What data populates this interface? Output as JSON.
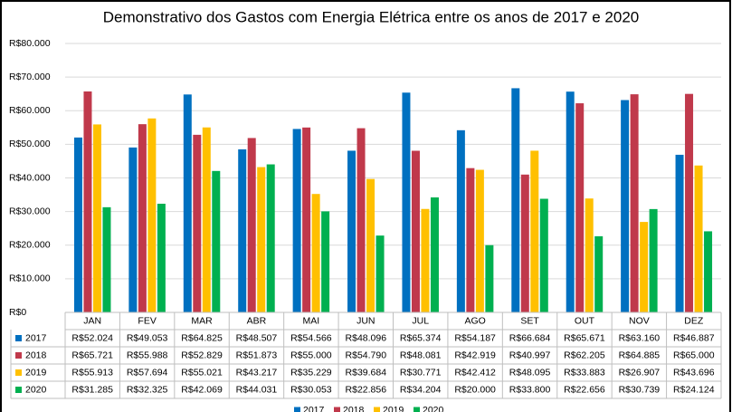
{
  "chart_data": {
    "type": "bar",
    "title": "Demonstrativo dos Gastos com Energia Elétrica entre os anos de 2017 e 2020",
    "categories": [
      "JAN",
      "FEV",
      "MAR",
      "ABR",
      "MAI",
      "JUN",
      "JUL",
      "AGO",
      "SET",
      "OUT",
      "NOV",
      "DEZ"
    ],
    "series": [
      {
        "name": "2017",
        "color": "#0070c0",
        "values": [
          52024,
          49053,
          64825,
          48507,
          54566,
          48096,
          65374,
          54187,
          66684,
          65671,
          63160,
          46887
        ],
        "value_labels": [
          "R$52.024",
          "R$49.053",
          "R$64.825",
          "R$48.507",
          "R$54.566",
          "R$48.096",
          "R$65.374",
          "R$54.187",
          "R$66.684",
          "R$65.671",
          "R$63.160",
          "R$46.887"
        ]
      },
      {
        "name": "2018",
        "color": "#c0394b",
        "values": [
          65721,
          55988,
          52829,
          51873,
          55000,
          54790,
          48081,
          42919,
          40997,
          62205,
          64885,
          65000
        ],
        "value_labels": [
          "R$65.721",
          "R$55.988",
          "R$52.829",
          "R$51.873",
          "R$55.000",
          "R$54.790",
          "R$48.081",
          "R$42.919",
          "R$40.997",
          "R$62.205",
          "R$64.885",
          "R$65.000"
        ]
      },
      {
        "name": "2019",
        "color": "#ffc000",
        "values": [
          55913,
          57694,
          55021,
          43217,
          35229,
          39684,
          30771,
          42412,
          48095,
          33883,
          26907,
          43696
        ],
        "value_labels": [
          "R$55.913",
          "R$57.694",
          "R$55.021",
          "R$43.217",
          "R$35.229",
          "R$39.684",
          "R$30.771",
          "R$42.412",
          "R$48.095",
          "R$33.883",
          "R$26.907",
          "R$43.696"
        ]
      },
      {
        "name": "2020",
        "color": "#00b050",
        "values": [
          31285,
          32325,
          42069,
          44031,
          30053,
          22856,
          34204,
          20000,
          33800,
          22656,
          30739,
          24124
        ],
        "value_labels": [
          "R$31.285",
          "R$32.325",
          "R$42.069",
          "R$44.031",
          "R$30.053",
          "R$22.856",
          "R$34.204",
          "R$20.000",
          "R$33.800",
          "R$22.656",
          "R$30.739",
          "R$24.124"
        ]
      }
    ],
    "ylim": [
      0,
      80000
    ],
    "yticks": [
      {
        "value": 0,
        "label": "R$0"
      },
      {
        "value": 10000,
        "label": "R$10.000"
      },
      {
        "value": 20000,
        "label": "R$20.000"
      },
      {
        "value": 30000,
        "label": "R$30.000"
      },
      {
        "value": 40000,
        "label": "R$40.000"
      },
      {
        "value": 50000,
        "label": "R$50.000"
      },
      {
        "value": 60000,
        "label": "R$60.000"
      },
      {
        "value": 70000,
        "label": "R$70.000"
      },
      {
        "value": 80000,
        "label": "R$80.000"
      }
    ],
    "grid": true,
    "legend": "bottom"
  }
}
